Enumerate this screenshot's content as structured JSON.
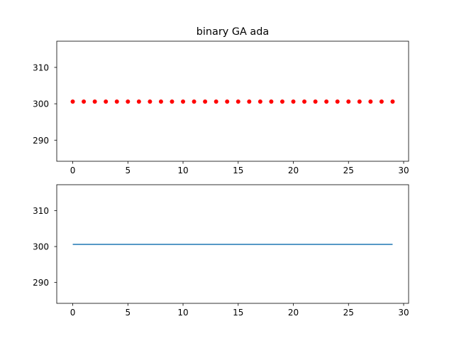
{
  "chart_data": [
    {
      "type": "scatter",
      "title": "binary GA ada",
      "x": [
        0,
        1,
        2,
        3,
        4,
        5,
        6,
        7,
        8,
        9,
        10,
        11,
        12,
        13,
        14,
        15,
        16,
        17,
        18,
        19,
        20,
        21,
        22,
        23,
        24,
        25,
        26,
        27,
        28,
        29
      ],
      "y": [
        300.6,
        300.6,
        300.6,
        300.6,
        300.6,
        300.6,
        300.6,
        300.6,
        300.6,
        300.6,
        300.6,
        300.6,
        300.6,
        300.6,
        300.6,
        300.6,
        300.6,
        300.6,
        300.6,
        300.6,
        300.6,
        300.6,
        300.6,
        300.6,
        300.6,
        300.6,
        300.6,
        300.6,
        300.6,
        300.6
      ],
      "xlim": [
        -1.45,
        30.45
      ],
      "ylim": [
        284.2,
        317.2
      ],
      "xticks": [
        0,
        5,
        10,
        15,
        20,
        25,
        30
      ],
      "yticks": [
        290,
        300,
        310
      ],
      "marker_color": "#ff0000",
      "grid": false
    },
    {
      "type": "line",
      "title": "",
      "x": [
        0,
        1,
        2,
        3,
        4,
        5,
        6,
        7,
        8,
        9,
        10,
        11,
        12,
        13,
        14,
        15,
        16,
        17,
        18,
        19,
        20,
        21,
        22,
        23,
        24,
        25,
        26,
        27,
        28,
        29
      ],
      "y": [
        300.6,
        300.6,
        300.6,
        300.6,
        300.6,
        300.6,
        300.6,
        300.6,
        300.6,
        300.6,
        300.6,
        300.6,
        300.6,
        300.6,
        300.6,
        300.6,
        300.6,
        300.6,
        300.6,
        300.6,
        300.6,
        300.6,
        300.6,
        300.6,
        300.6,
        300.6,
        300.6,
        300.6,
        300.6,
        300.6
      ],
      "xlim": [
        -1.45,
        30.45
      ],
      "ylim": [
        284.2,
        317.2
      ],
      "xticks": [
        0,
        5,
        10,
        15,
        20,
        25,
        30
      ],
      "yticks": [
        290,
        300,
        310
      ],
      "line_color": "#1f77b4",
      "grid": false
    }
  ]
}
